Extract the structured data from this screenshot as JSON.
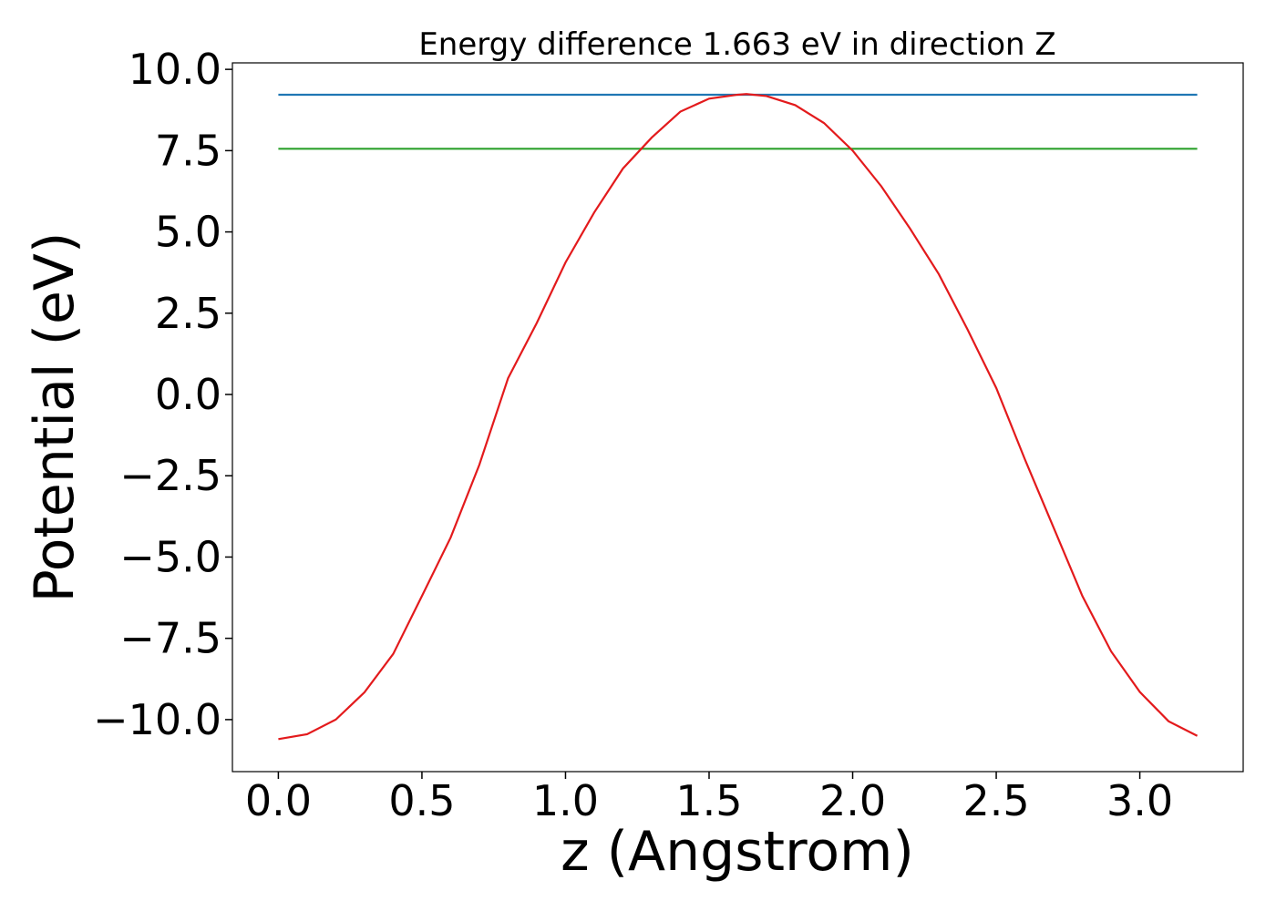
{
  "chart_data": {
    "type": "line",
    "title": "Energy difference 1.663 eV in direction Z",
    "xlabel": "z (Angstrom)",
    "ylabel": "Potential (eV)",
    "xlim": [
      -0.16,
      3.36
    ],
    "ylim": [
      -11.6,
      10.2
    ],
    "xticks": [
      {
        "value": 0,
        "label": "0.0"
      },
      0.5,
      {
        "value": 1,
        "label": "1.0"
      },
      1.5,
      {
        "value": 2,
        "label": "2.0"
      },
      2.5,
      {
        "value": 3,
        "label": "3.0"
      }
    ],
    "yticks": [
      {
        "value": 10,
        "label": "10.0"
      },
      7.5,
      {
        "value": 5,
        "label": "5.0"
      },
      2.5,
      {
        "value": 0,
        "label": "0.0"
      },
      {
        "value": -2.5,
        "label": "−2.5"
      },
      {
        "value": -5,
        "label": "−5.0"
      },
      {
        "value": -7.5,
        "label": "−7.5"
      },
      {
        "value": -10,
        "label": "−10.0"
      }
    ],
    "series": [
      {
        "color": "#1f77b4",
        "x": [
          0,
          3.2
        ],
        "values": [
          9.22,
          9.22
        ]
      },
      {
        "color": "#2ca02c",
        "x": [
          0,
          3.2
        ],
        "values": [
          7.557,
          7.557
        ]
      },
      {
        "color": "#e31a1c",
        "x": [
          0,
          0.1,
          0.2,
          0.3,
          0.4,
          0.5,
          0.6,
          0.7,
          0.8,
          0.9,
          1.0,
          1.1,
          1.2,
          1.3,
          1.4,
          1.5,
          1.6,
          1.63,
          1.7,
          1.8,
          1.9,
          2.0,
          2.1,
          2.2,
          2.3,
          2.4,
          2.5,
          2.6,
          2.7,
          2.8,
          2.9,
          3.0,
          3.1,
          3.2
        ],
        "values": [
          -10.6,
          -10.45,
          -10.0,
          -9.16,
          -7.98,
          -6.2,
          -4.4,
          -2.16,
          0.5,
          2.2,
          4.06,
          5.6,
          6.95,
          7.9,
          8.7,
          9.1,
          9.22,
          9.24,
          9.18,
          8.9,
          8.35,
          7.5,
          6.4,
          5.1,
          3.7,
          2.0,
          0.2,
          -2.0,
          -4.1,
          -6.2,
          -7.9,
          -9.15,
          -10.05,
          -10.5
        ]
      }
    ]
  }
}
